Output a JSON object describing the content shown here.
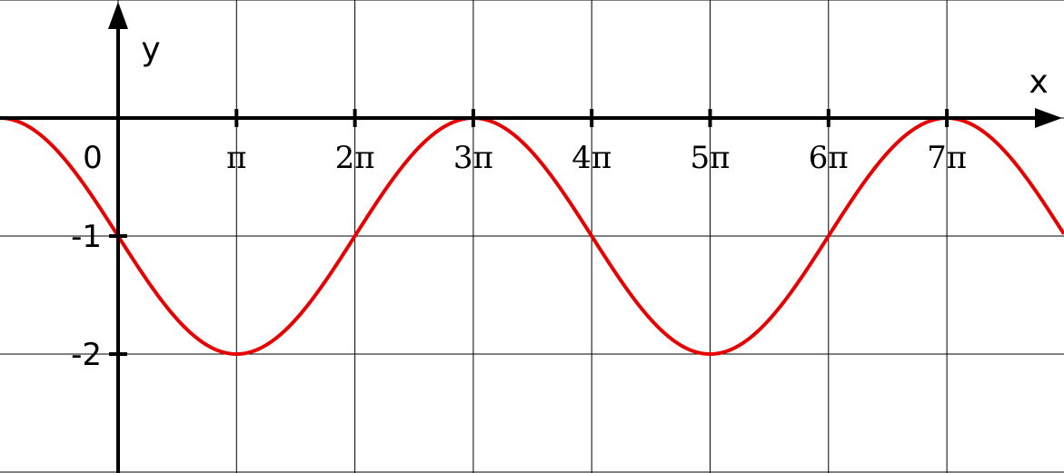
{
  "chart_data": {
    "type": "line",
    "xlabel": "x",
    "ylabel": "y",
    "x_unit": "π",
    "x_range_in_pi": [
      -1,
      7.85
    ],
    "y_range": [
      -2.9,
      1.0
    ],
    "grid": true,
    "origin_label": "0",
    "x_ticks": [
      {
        "value_in_pi": 1,
        "label": "π"
      },
      {
        "value_in_pi": 2,
        "label": "2π"
      },
      {
        "value_in_pi": 3,
        "label": "3π"
      },
      {
        "value_in_pi": 4,
        "label": "4π"
      },
      {
        "value_in_pi": 5,
        "label": "5π"
      },
      {
        "value_in_pi": 6,
        "label": "6π"
      },
      {
        "value_in_pi": 7,
        "label": "7π"
      }
    ],
    "y_ticks": [
      {
        "value": -1,
        "label": "-1"
      },
      {
        "value": -2,
        "label": "-2"
      }
    ],
    "series": [
      {
        "color": "#e60000",
        "function": "y = cos(x/2 - 3π/2) - 1",
        "key_points_in_pi": [
          {
            "x": 0,
            "y": -1
          },
          {
            "x": 1,
            "y": -2
          },
          {
            "x": 2,
            "y": -1
          },
          {
            "x": 3,
            "y": 0
          },
          {
            "x": 4,
            "y": -1
          },
          {
            "x": 5,
            "y": -2
          },
          {
            "x": 6,
            "y": -1
          },
          {
            "x": 7,
            "y": 0
          }
        ]
      }
    ]
  }
}
